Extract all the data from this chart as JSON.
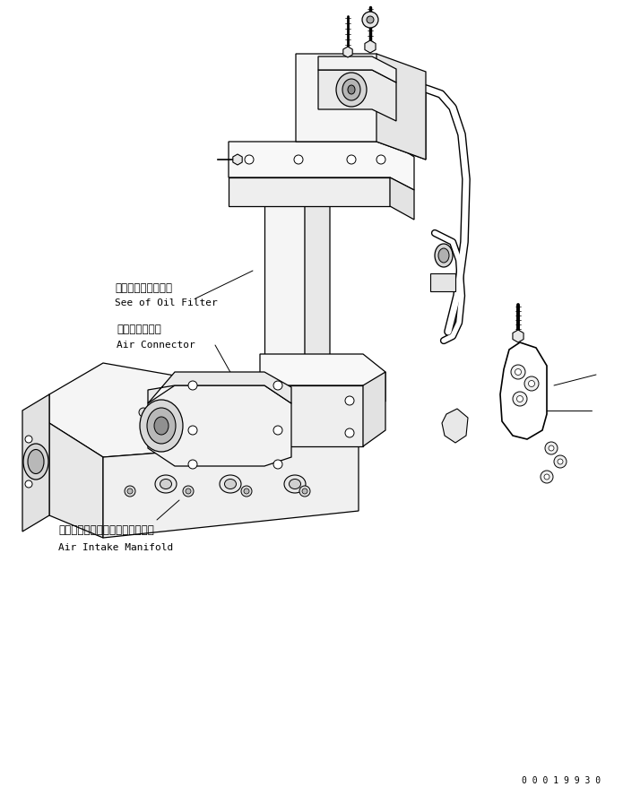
{
  "title": "",
  "part_number": "0 0 0 1 9 9 3 0",
  "labels": {
    "oil_filter_jp": "オイルフィルタ参照",
    "oil_filter_en": "See of Oil Filter",
    "air_connector_jp": "エアーコネクタ",
    "air_connector_en": "Air Connector",
    "manifold_jp": "エアーインテークマニホールド゙",
    "manifold_en": "Air Intake Manifold"
  },
  "bg_color": "#ffffff",
  "line_color": "#000000",
  "line_width": 0.8
}
